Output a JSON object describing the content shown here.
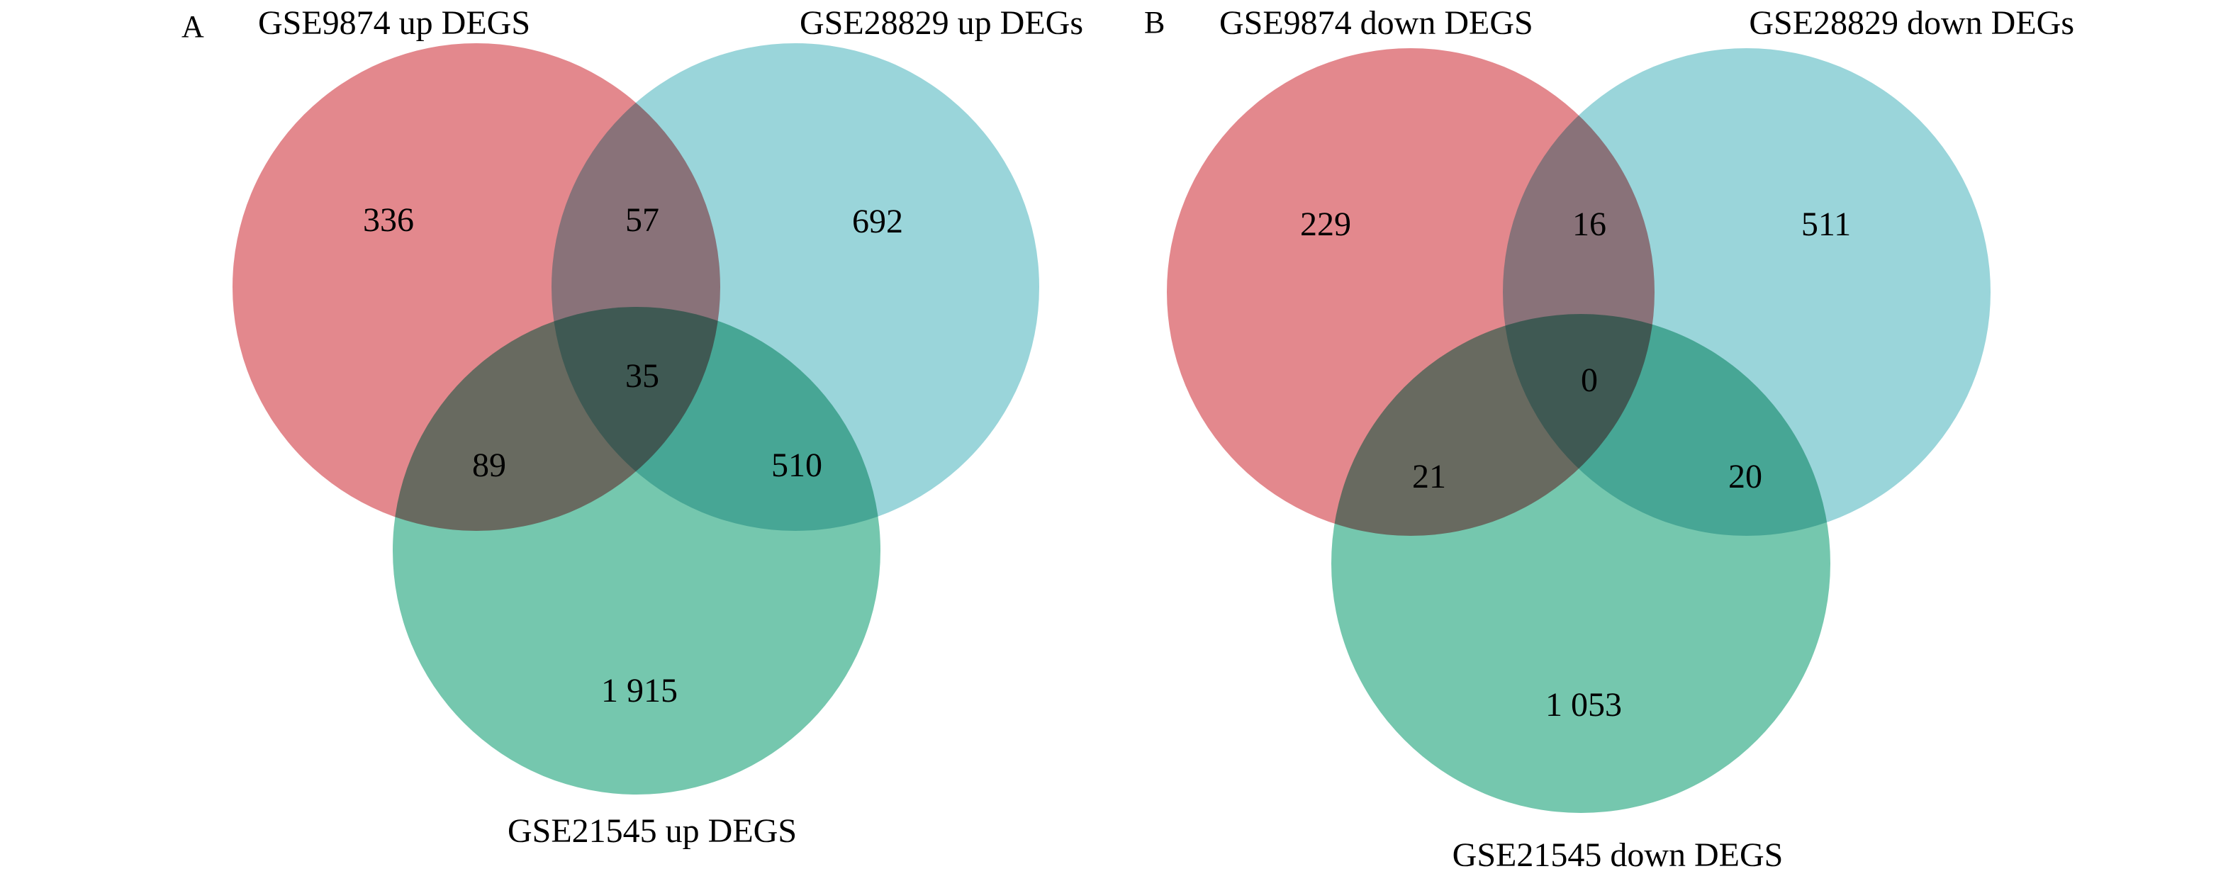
{
  "panels": [
    {
      "label": "A",
      "sets": [
        {
          "name": "GSE9874 up DEGS",
          "color": "#e3888d"
        },
        {
          "name": "GSE28829 up DEGs",
          "color": "#9ad5da"
        },
        {
          "name": "GSE21545 up DEGS",
          "color": "#75c7ae"
        }
      ],
      "regions": {
        "only_1": "336",
        "only_2": "692",
        "only_3": "1 915",
        "r12": "57",
        "r13": "89",
        "r23": "510",
        "r123": "35"
      }
    },
    {
      "label": "B",
      "sets": [
        {
          "name": "GSE9874 down DEGS",
          "color": "#e3888d"
        },
        {
          "name": "GSE28829 down DEGs",
          "color": "#9ad5da"
        },
        {
          "name": "GSE21545 down DEGS",
          "color": "#75c7ae"
        }
      ],
      "regions": {
        "only_1": "229",
        "only_2": "511",
        "only_3": "1 053",
        "r12": "16",
        "r13": "21",
        "r23": "20",
        "r123": "0"
      }
    }
  ]
}
